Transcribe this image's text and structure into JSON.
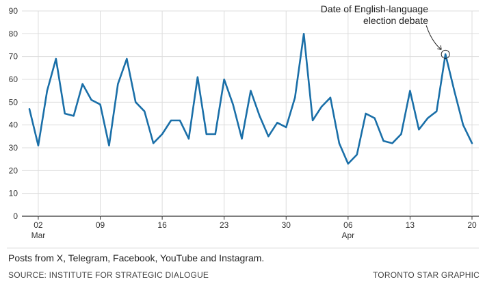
{
  "chart_data": {
    "type": "line",
    "x": [
      "Mar 01",
      "Mar 02",
      "Mar 03",
      "Mar 04",
      "Mar 05",
      "Mar 06",
      "Mar 07",
      "Mar 08",
      "Mar 09",
      "Mar 10",
      "Mar 11",
      "Mar 12",
      "Mar 13",
      "Mar 14",
      "Mar 15",
      "Mar 16",
      "Mar 17",
      "Mar 18",
      "Mar 19",
      "Mar 20",
      "Mar 21",
      "Mar 22",
      "Mar 23",
      "Mar 24",
      "Mar 25",
      "Mar 26",
      "Mar 27",
      "Mar 28",
      "Mar 29",
      "Mar 30",
      "Mar 31",
      "Apr 01",
      "Apr 02",
      "Apr 03",
      "Apr 04",
      "Apr 05",
      "Apr 06",
      "Apr 07",
      "Apr 08",
      "Apr 09",
      "Apr 10",
      "Apr 11",
      "Apr 12",
      "Apr 13",
      "Apr 14",
      "Apr 15",
      "Apr 16",
      "Apr 17",
      "Apr 18",
      "Apr 19",
      "Apr 20"
    ],
    "series": [
      {
        "values": [
          47,
          31,
          55,
          69,
          45,
          44,
          58,
          51,
          49,
          31,
          58,
          69,
          50,
          46,
          32,
          36,
          42,
          42,
          34,
          61,
          36,
          36,
          60,
          49,
          34,
          55,
          44,
          35,
          41,
          39,
          52,
          80,
          42,
          48,
          52,
          32,
          23,
          27,
          45,
          43,
          33,
          32,
          36,
          55,
          38,
          43,
          46,
          71,
          55,
          40,
          32
        ]
      }
    ],
    "ylim": [
      0,
      90
    ],
    "yticks": [
      "0",
      "10",
      "20",
      "30",
      "40",
      "50",
      "60",
      "70",
      "80",
      "90"
    ],
    "xticks": [
      {
        "label": "02",
        "sublabel": "Mar",
        "index": 1
      },
      {
        "label": "09",
        "sublabel": "",
        "index": 8
      },
      {
        "label": "16",
        "sublabel": "",
        "index": 15
      },
      {
        "label": "23",
        "sublabel": "",
        "index": 22
      },
      {
        "label": "30",
        "sublabel": "",
        "index": 29
      },
      {
        "label": "06",
        "sublabel": "Apr",
        "index": 36
      },
      {
        "label": "13",
        "sublabel": "",
        "index": 43
      },
      {
        "label": "20",
        "sublabel": "",
        "index": 50
      }
    ],
    "annotation": {
      "lines": [
        "Date of English-language",
        "election debate"
      ],
      "index": 47,
      "value": 71
    },
    "grid": true,
    "line_color": "#1a6fa8",
    "title": "",
    "xlabel": "",
    "ylabel": ""
  },
  "footer": {
    "caption": "Posts from X, Telegram, Facebook, YouTube and Instagram.",
    "source": "SOURCE: INSTITUTE FOR STRATEGIC DIALOGUE",
    "credit": "TORONTO STAR GRAPHIC"
  }
}
